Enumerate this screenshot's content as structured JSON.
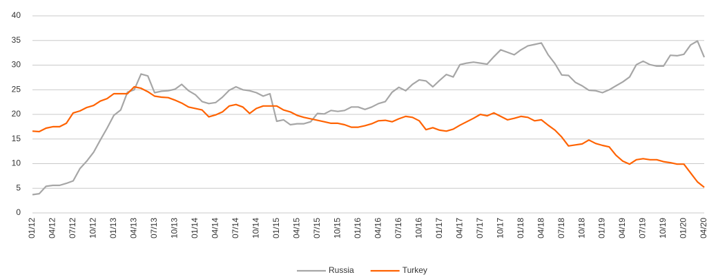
{
  "chart_data": {
    "type": "line",
    "categories": [
      "01/12",
      null,
      null,
      "04/12",
      null,
      null,
      "07/12",
      null,
      null,
      "10/12",
      null,
      null,
      "01/13",
      null,
      null,
      "04/13",
      null,
      null,
      "07/13",
      null,
      null,
      "10/13",
      null,
      null,
      "01/14",
      null,
      null,
      "04/14",
      null,
      null,
      "07/14",
      null,
      null,
      "10/14",
      null,
      null,
      "01/15",
      null,
      null,
      "04/15",
      null,
      null,
      "07/15",
      null,
      null,
      "10/15",
      null,
      null,
      "01/16",
      null,
      null,
      "04/16",
      null,
      null,
      "07/16",
      null,
      null,
      "10/16",
      null,
      null,
      "01/17",
      null,
      null,
      "04/17",
      null,
      null,
      "07/17",
      null,
      null,
      "10/17",
      null,
      null,
      "01/18",
      null,
      null,
      "04/18",
      null,
      null,
      "07/18",
      null,
      null,
      "10/18",
      null,
      null,
      "01/19",
      null,
      null,
      "04/19",
      null,
      null,
      "07/19",
      null,
      null,
      "10/19",
      null,
      null,
      "01/20",
      null,
      null,
      "04/20"
    ],
    "series": [
      {
        "name": "Russia",
        "color": "#a6a6a6",
        "values": [
          3.7,
          3.9,
          5.4,
          5.6,
          5.6,
          6.0,
          6.5,
          9.0,
          10.5,
          12.3,
          14.8,
          17.2,
          19.8,
          20.9,
          24.5,
          25.0,
          28.2,
          27.8,
          24.4,
          24.7,
          24.8,
          25.1,
          26.1,
          24.8,
          24.0,
          22.6,
          22.2,
          22.4,
          23.5,
          24.9,
          25.6,
          25.0,
          24.8,
          24.4,
          23.7,
          24.2,
          18.6,
          18.9,
          17.9,
          18.1,
          18.1,
          18.5,
          20.2,
          20.1,
          20.8,
          20.6,
          20.8,
          21.5,
          21.5,
          21.0,
          21.5,
          22.2,
          22.6,
          24.5,
          25.5,
          24.8,
          26.1,
          27.0,
          26.8,
          25.6,
          26.9,
          28.1,
          27.6,
          30.1,
          30.4,
          30.6,
          30.4,
          30.2,
          31.7,
          33.1,
          32.6,
          32.1,
          33.1,
          33.9,
          34.2,
          34.5,
          32.1,
          30.3,
          28.0,
          27.9,
          26.5,
          25.8,
          24.9,
          24.8,
          24.4,
          25.0,
          25.8,
          26.6,
          27.6,
          30.1,
          30.8,
          30.1,
          29.8,
          29.8,
          32.0,
          31.9,
          32.2,
          34.1,
          34.9,
          31.6
        ]
      },
      {
        "name": "Turkey",
        "color": "#ff6200",
        "values": [
          16.6,
          16.5,
          17.2,
          17.5,
          17.5,
          18.2,
          20.3,
          20.7,
          21.4,
          21.8,
          22.7,
          23.2,
          24.2,
          24.2,
          24.2,
          25.6,
          25.3,
          24.6,
          23.7,
          23.5,
          23.4,
          22.9,
          22.3,
          21.5,
          21.2,
          20.9,
          19.5,
          19.9,
          20.5,
          21.7,
          22.0,
          21.5,
          20.2,
          21.2,
          21.7,
          21.7,
          21.7,
          20.9,
          20.5,
          19.8,
          19.4,
          19.1,
          18.8,
          18.5,
          18.2,
          18.2,
          17.9,
          17.4,
          17.4,
          17.7,
          18.1,
          18.7,
          18.8,
          18.5,
          19.1,
          19.6,
          19.4,
          18.7,
          16.9,
          17.3,
          16.8,
          16.6,
          17.0,
          17.8,
          18.5,
          19.2,
          20.0,
          19.7,
          20.3,
          19.6,
          18.9,
          19.2,
          19.6,
          19.4,
          18.7,
          18.9,
          17.8,
          16.8,
          15.4,
          13.6,
          13.8,
          14.0,
          14.8,
          14.1,
          13.7,
          13.4,
          11.7,
          10.5,
          9.9,
          10.8,
          11.0,
          10.8,
          10.8,
          10.4,
          10.2,
          9.9,
          9.9,
          8.1,
          6.3,
          5.2
        ]
      }
    ],
    "ylim": [
      0,
      40
    ],
    "yticks": [
      0,
      5,
      10,
      15,
      20,
      25,
      30,
      35,
      40
    ],
    "grid": true,
    "legend": "bottom"
  }
}
